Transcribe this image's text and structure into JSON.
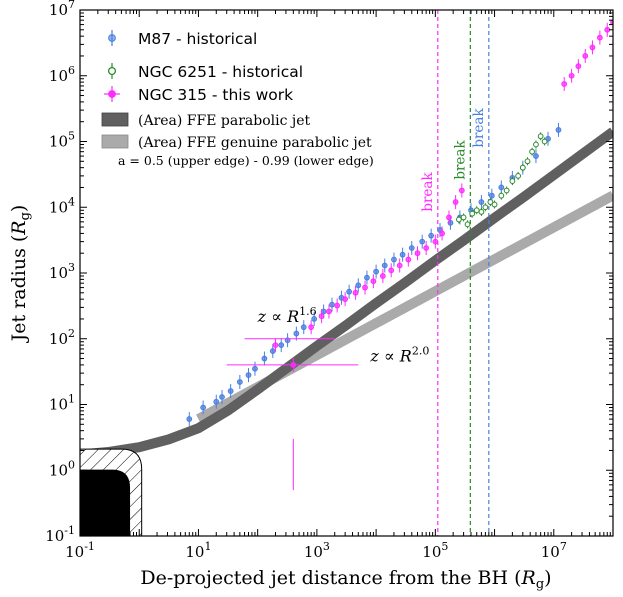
{
  "chart_data": {
    "type": "scatter",
    "xscale": "log",
    "yscale": "log",
    "xlim": [
      0.1,
      100000000
    ],
    "ylim": [
      0.1,
      10000000
    ],
    "xlabel": "De-projected jet distance from the BH (R_g)",
    "ylabel": "Jet radius (R_g)",
    "xlabel_text": "De-projected jet distance from the BH (",
    "xlabel_R": "R",
    "xlabel_sub": "g",
    "xlabel_close": ")",
    "ylabel_text": "Jet radius (",
    "ylabel_R": "R",
    "ylabel_sub": "g",
    "ylabel_close": ")",
    "x_tick_exponents": [
      -1,
      1,
      3,
      5,
      7
    ],
    "y_tick_exponents": [
      -1,
      0,
      1,
      2,
      3,
      4,
      5,
      6,
      7
    ],
    "tick_base": "10",
    "colors": {
      "m87": "#4a7fe0",
      "ngc6251": "#2a8a2a",
      "ngc315": "#ff2bff",
      "ffe_dark": "#606060",
      "ffe_light": "#aaaaaa"
    },
    "series": [
      {
        "name": "M87 - historical",
        "key": "m87",
        "marker": "circle",
        "points": [
          [
            7,
            6
          ],
          [
            12,
            9
          ],
          [
            20,
            11
          ],
          [
            25,
            13
          ],
          [
            35,
            16
          ],
          [
            50,
            22
          ],
          [
            70,
            28
          ],
          [
            90,
            35
          ],
          [
            130,
            50
          ],
          [
            180,
            65
          ],
          [
            250,
            80
          ],
          [
            320,
            95
          ],
          [
            450,
            120
          ],
          [
            600,
            150
          ],
          [
            900,
            200
          ],
          [
            1300,
            260
          ],
          [
            1800,
            330
          ],
          [
            2600,
            420
          ],
          [
            3500,
            520
          ],
          [
            5000,
            650
          ],
          [
            7000,
            850
          ],
          [
            10000,
            1050
          ],
          [
            14000,
            1300
          ],
          [
            20000,
            1600
          ],
          [
            28000,
            1900
          ],
          [
            40000,
            2400
          ],
          [
            60000,
            3000
          ],
          [
            85000,
            3700
          ],
          [
            120000,
            4500
          ],
          [
            180000,
            5800
          ],
          [
            260000,
            7000
          ],
          [
            400000,
            9000
          ],
          [
            600000,
            12000
          ],
          [
            900000,
            15000
          ],
          [
            1300000,
            20000
          ],
          [
            2000000,
            28000
          ],
          [
            3000000,
            40000
          ],
          [
            5000000,
            60000
          ],
          [
            8000000,
            110000
          ],
          [
            12000000,
            150000
          ]
        ]
      },
      {
        "name": "NGC 6251 - historical",
        "key": "ngc6251",
        "marker": "circle",
        "points": [
          [
            250000,
            6500
          ],
          [
            300000,
            7000
          ],
          [
            350000,
            5500
          ],
          [
            420000,
            8000
          ],
          [
            500000,
            9000
          ],
          [
            600000,
            8500
          ],
          [
            700000,
            10000
          ],
          [
            850000,
            12000
          ],
          [
            1000000,
            11000
          ],
          [
            1300000,
            15000
          ],
          [
            1600000,
            18000
          ],
          [
            2000000,
            25000
          ],
          [
            2500000,
            30000
          ],
          [
            3000000,
            40000
          ],
          [
            3600000,
            50000
          ],
          [
            4300000,
            70000
          ],
          [
            5000000,
            90000
          ],
          [
            6000000,
            120000
          ],
          [
            7000000,
            100000
          ]
        ]
      },
      {
        "name": "NGC 315 - this work",
        "key": "ngc315",
        "marker": "circle",
        "points": [
          [
            200,
            80
          ],
          [
            400,
            40
          ],
          [
            800,
            150
          ],
          [
            1200,
            220
          ],
          [
            1600,
            260
          ],
          [
            2200,
            320
          ],
          [
            3000,
            400
          ],
          [
            4500,
            500
          ],
          [
            6500,
            600
          ],
          [
            9000,
            750
          ],
          [
            13000,
            900
          ],
          [
            18000,
            1100
          ],
          [
            25000,
            1300
          ],
          [
            35000,
            1600
          ],
          [
            50000,
            2000
          ],
          [
            70000,
            2400
          ],
          [
            100000,
            3000
          ],
          [
            130000,
            4000
          ],
          [
            170000,
            7000
          ],
          [
            220000,
            12000
          ],
          [
            280000,
            18000
          ],
          [
            15000000,
            750000
          ],
          [
            20000000,
            1000000
          ],
          [
            26000000,
            1400000
          ],
          [
            34000000,
            2000000
          ],
          [
            45000000,
            2700000
          ],
          [
            60000000,
            3800000
          ],
          [
            80000000,
            5000000
          ],
          [
            100000000,
            6500000
          ]
        ]
      }
    ],
    "ffe_dark": {
      "x_log": [
        -1,
        -0.5,
        0,
        0.5,
        1,
        1.5,
        2,
        2.5,
        3,
        3.5,
        4,
        4.5,
        5,
        5.5,
        6,
        6.5,
        7,
        7.5,
        8
      ],
      "y_log": [
        0.24,
        0.28,
        0.35,
        0.47,
        0.64,
        0.91,
        1.23,
        1.56,
        1.89,
        2.21,
        2.54,
        2.86,
        3.19,
        3.51,
        3.84,
        4.16,
        4.49,
        4.82,
        5.15
      ]
    },
    "ffe_light": {
      "x_log": [
        1,
        8
      ],
      "y_log": [
        0.78,
        4.18
      ]
    },
    "breaks": [
      {
        "label": "break",
        "x": 110000,
        "key": "ngc315"
      },
      {
        "label": "break",
        "x": 390000,
        "key": "ngc6251"
      },
      {
        "label": "break",
        "x": 800000,
        "key": "m87"
      }
    ],
    "legend": {
      "entries": [
        {
          "label": "M87 - historical",
          "key": "m87"
        },
        {
          "label": "NGC 6251 - historical",
          "key": "ngc6251"
        },
        {
          "label": "NGC 315 - this work",
          "key": "ngc315"
        }
      ],
      "area_entries": [
        {
          "label": "(Area) FFE parabolic jet",
          "key": "ffe_dark"
        },
        {
          "label": "(Area) FFE genuine parabolic jet",
          "key": "ffe_light"
        }
      ],
      "note": "a = 0.5 (upper edge) - 0.99 (lower edge)",
      "placement": "top-left"
    },
    "annotations": [
      {
        "text_main": "z ∝ R",
        "exponent": "1.6",
        "x": 100,
        "y": 180
      },
      {
        "text_main": "z ∝ R",
        "exponent": "2.0",
        "x": 8000,
        "y": 45
      }
    ]
  }
}
